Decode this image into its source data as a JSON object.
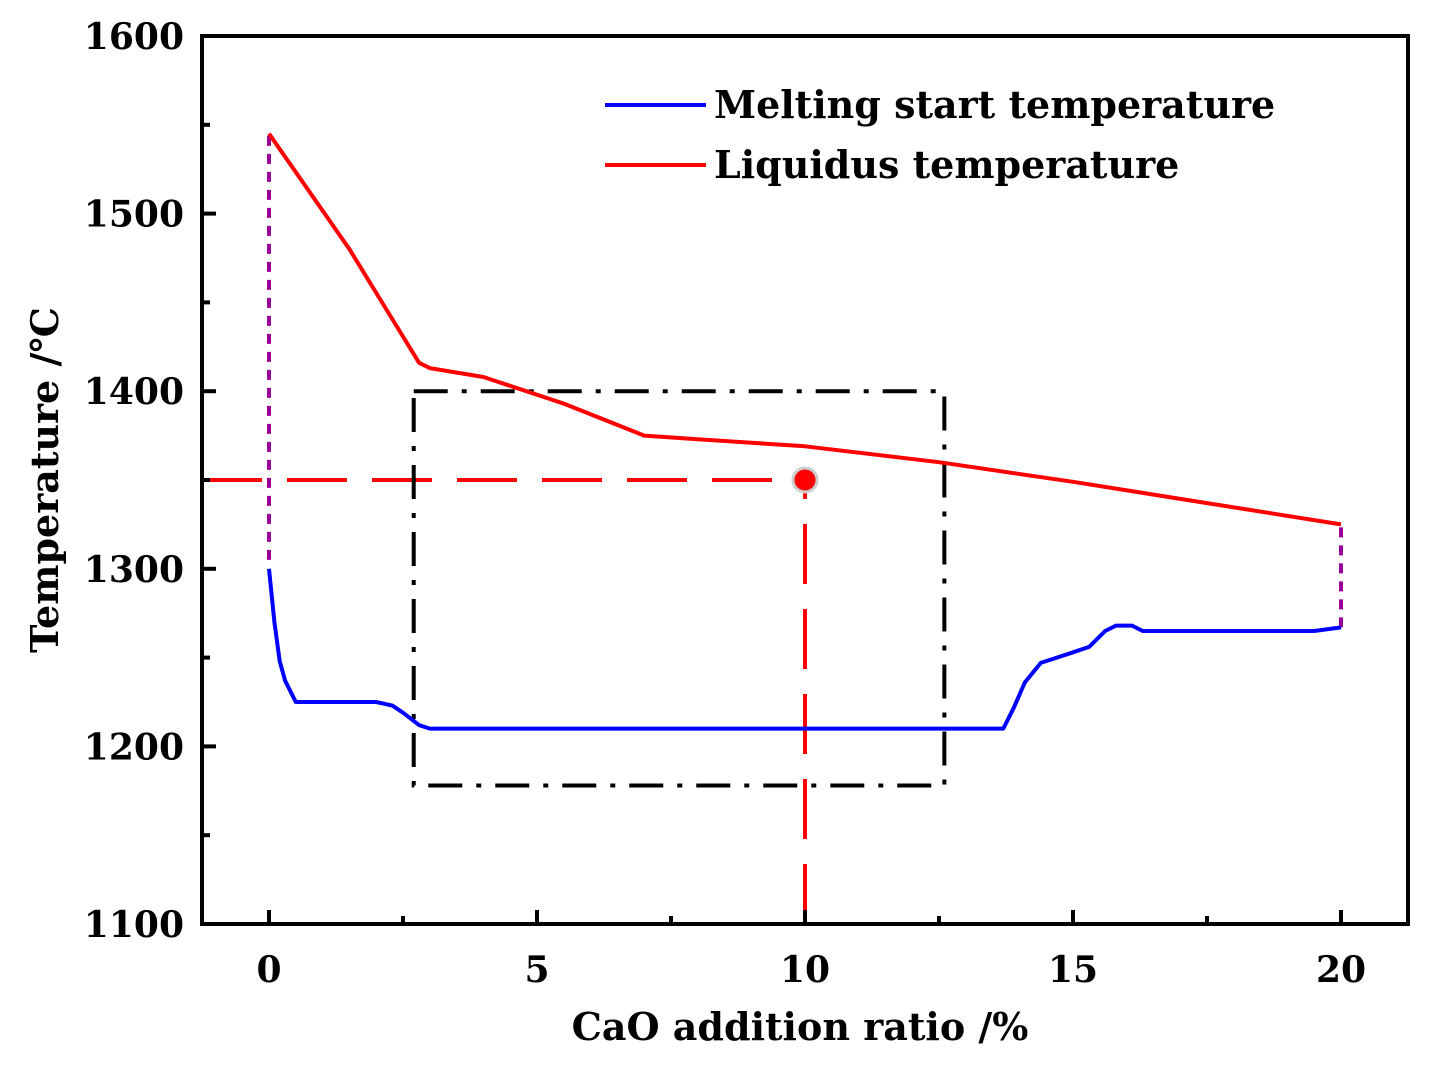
{
  "chart_data": {
    "type": "line",
    "title": "",
    "xlabel": "CaO addition  ratio /%",
    "ylabel": "Temperature /℃",
    "xlim": [
      -1.25,
      21.25
    ],
    "ylim": [
      1100,
      1600
    ],
    "x_ticks": [
      0,
      5,
      10,
      15,
      20
    ],
    "x_tick_labels": [
      "0",
      "5",
      "10",
      "15",
      "20"
    ],
    "x_minor_ticks": [
      2.5,
      7.5,
      12.5,
      17.5
    ],
    "y_ticks": [
      1100,
      1200,
      1300,
      1400,
      1500,
      1600
    ],
    "y_tick_labels": [
      "1100",
      "1200",
      "1300",
      "1400",
      "1500",
      "1600"
    ],
    "y_minor_ticks": [
      1150,
      1250,
      1350,
      1450,
      1550
    ],
    "legend_position": "top-right",
    "series": [
      {
        "name": "Melting start temperature",
        "color": "#0000ff",
        "x": [
          0,
          0.1,
          0.2,
          0.3,
          0.5,
          1.0,
          1.5,
          2.0,
          2.3,
          2.5,
          2.8,
          3.0,
          5,
          8,
          10,
          12,
          13,
          13.7,
          13.9,
          14.1,
          14.4,
          14.7,
          15.0,
          15.3,
          15.6,
          15.8,
          16.1,
          16.3,
          17,
          18,
          19,
          19.5,
          20
        ],
        "y": [
          1300,
          1270,
          1248,
          1237,
          1225,
          1225,
          1225,
          1225,
          1223,
          1219,
          1212,
          1210,
          1210,
          1210,
          1210,
          1210,
          1210,
          1210,
          1222,
          1236,
          1247,
          1250,
          1253,
          1256,
          1265,
          1268,
          1268,
          1265,
          1265,
          1265,
          1265,
          1265,
          1267
        ]
      },
      {
        "name": "Liquidus temperature",
        "color": "#ff0000",
        "x": [
          0,
          1.5,
          2.8,
          3.0,
          4.0,
          5.5,
          7.0,
          8.0,
          10.0,
          12.5,
          15.0,
          17.5,
          20.0
        ],
        "y": [
          1545,
          1480,
          1416,
          1413,
          1408,
          1393,
          1375,
          1373,
          1369,
          1360,
          1349,
          1337,
          1325
        ]
      }
    ],
    "annotations": [
      {
        "type": "dashed-vertical",
        "color": "#990099",
        "x": 0,
        "y_from": 1305,
        "y_to": 1545
      },
      {
        "type": "dashed-vertical",
        "color": "#990099",
        "x": 20,
        "y_from": 1267,
        "y_to": 1325
      },
      {
        "type": "dashed-horizontal",
        "color": "#ff0000",
        "y": 1350,
        "x_from": -1.25,
        "x_to": 10
      },
      {
        "type": "dashed-vertical",
        "color": "#ff0000",
        "x": 10,
        "y_from": 1100,
        "y_to": 1350
      },
      {
        "type": "point",
        "color": "#ff0000",
        "x": 10,
        "y": 1350
      },
      {
        "type": "dash-dot-rectangle",
        "color": "#000000",
        "x_from": 2.7,
        "x_to": 12.6,
        "y_from": 1178,
        "y_to": 1400
      }
    ]
  }
}
